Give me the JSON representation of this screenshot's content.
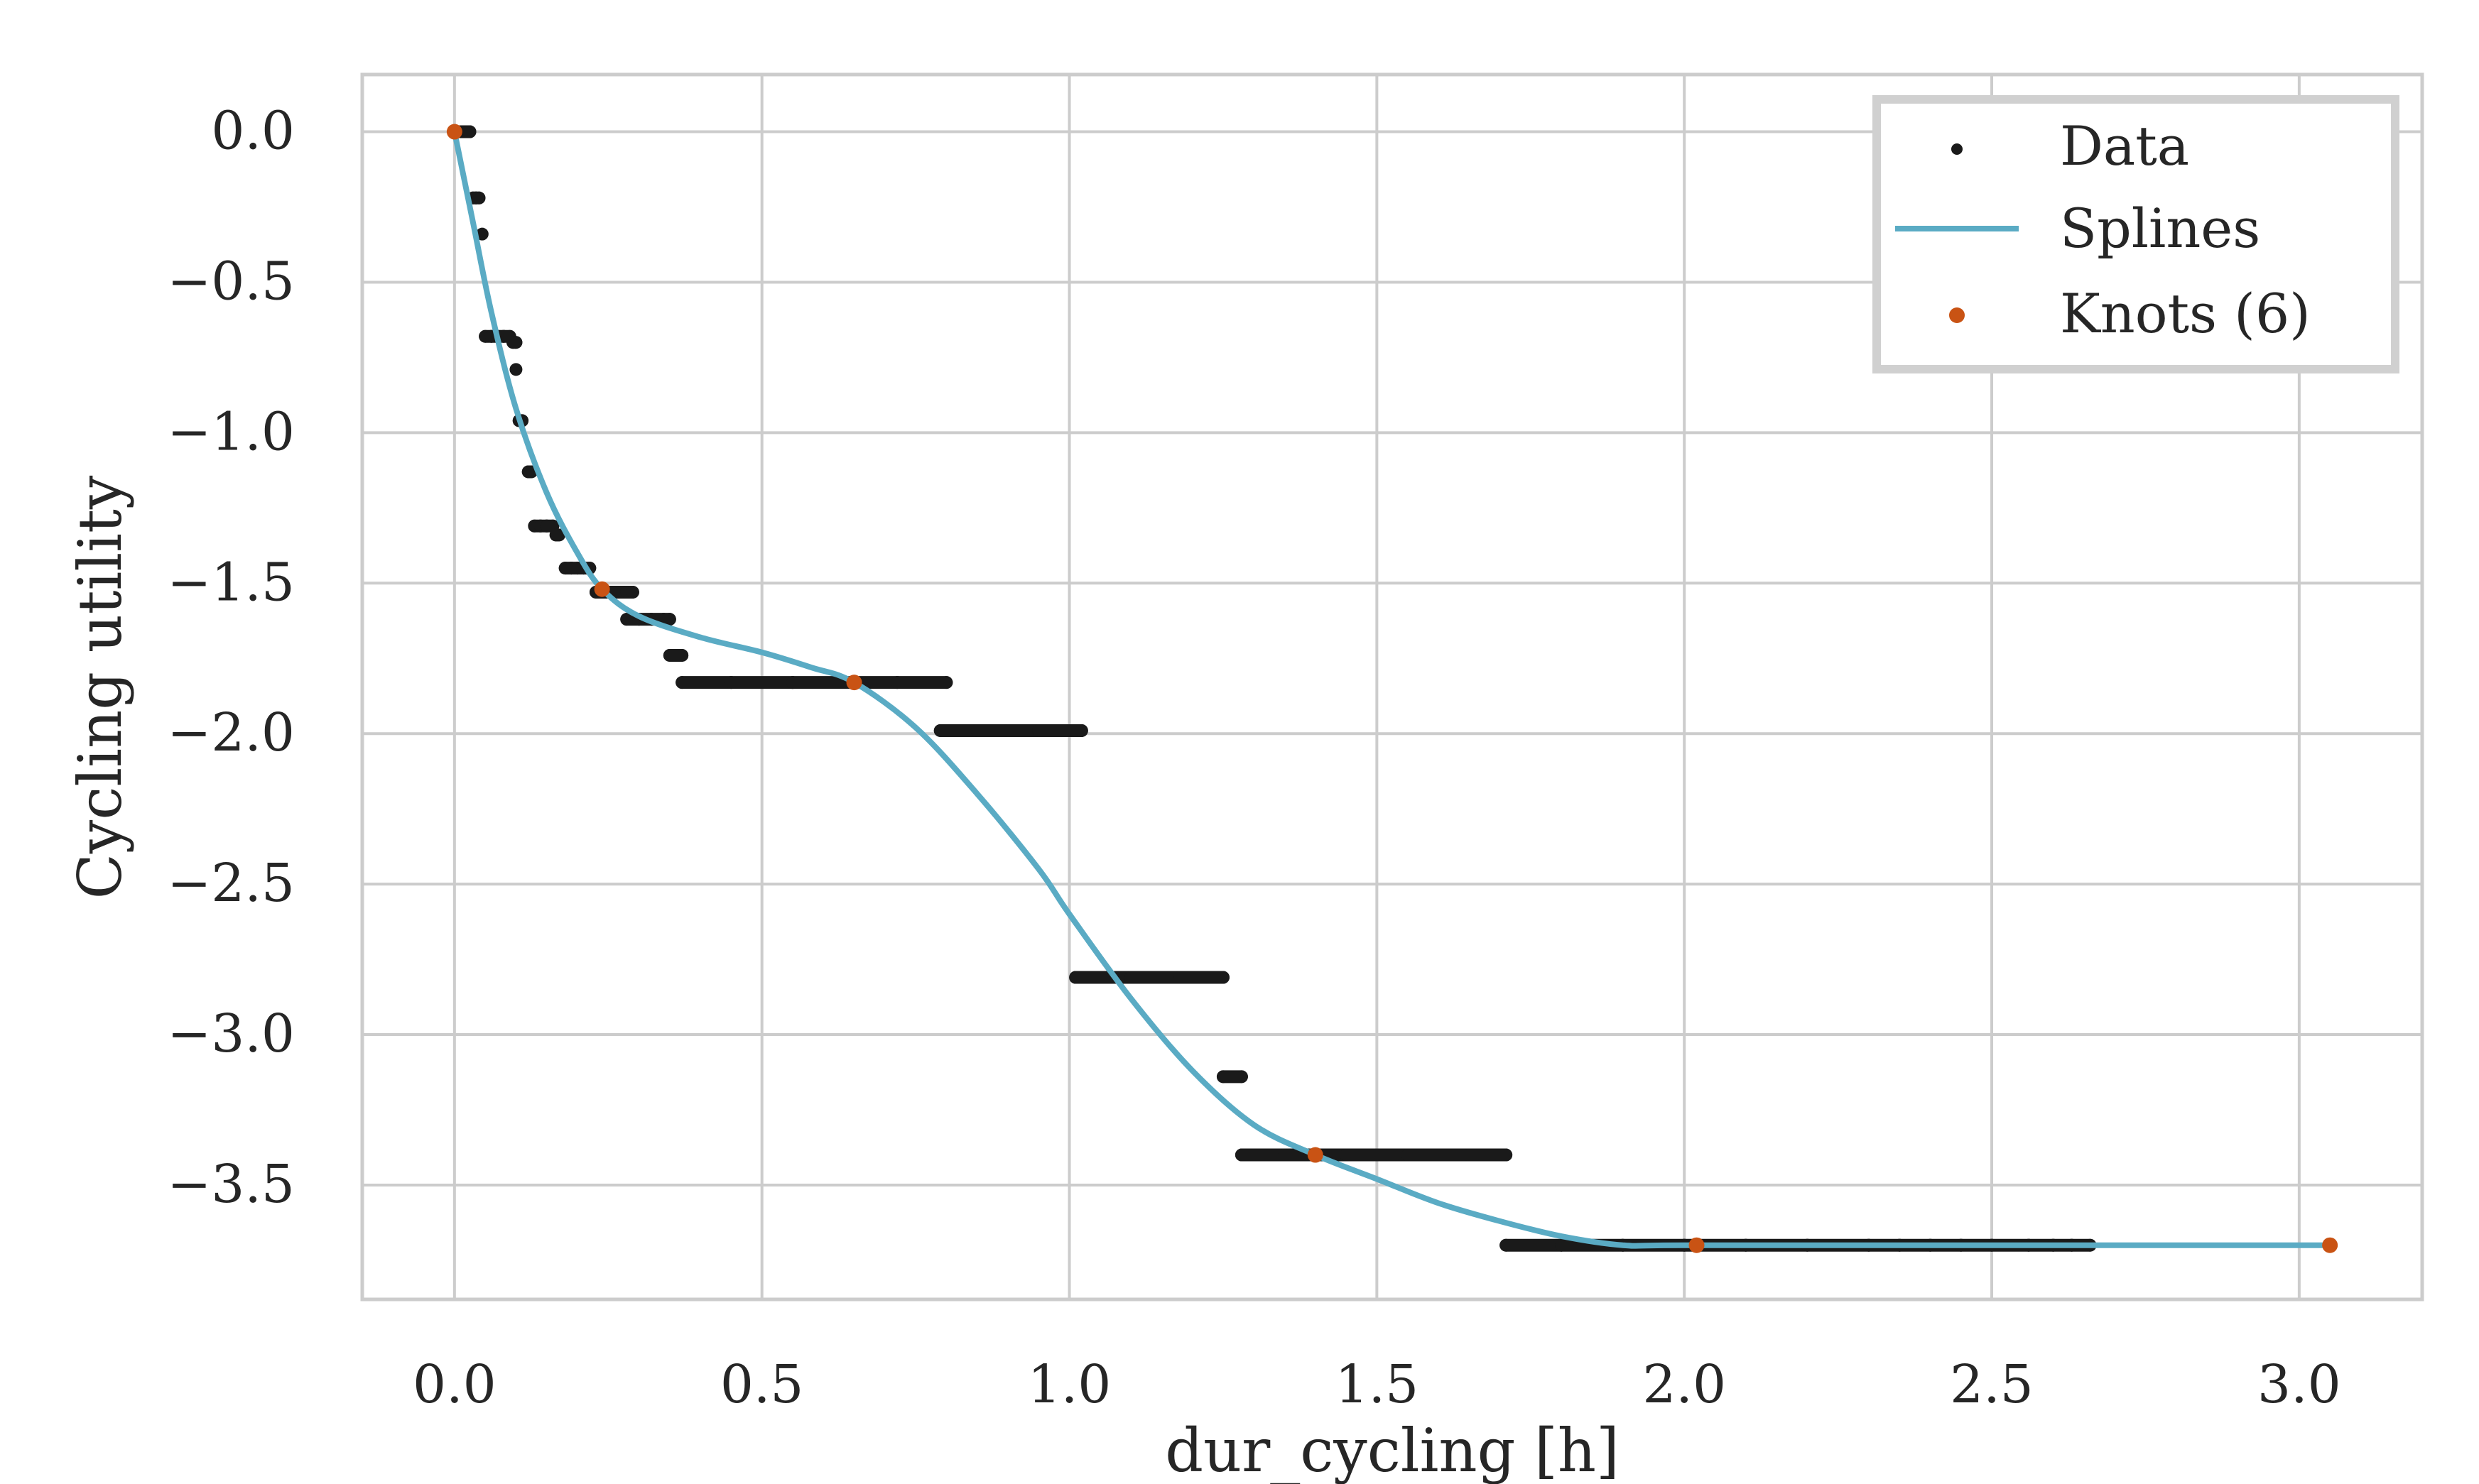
{
  "chart_data": {
    "type": "scatter",
    "xlabel": "dur_cycling [h]",
    "ylabel": "Cycling utility",
    "xlim": [
      -0.15,
      3.2
    ],
    "ylim": [
      -3.88,
      0.19
    ],
    "xticks": [
      0.0,
      0.5,
      1.0,
      1.5,
      2.0,
      2.5,
      3.0
    ],
    "yticks": [
      0.0,
      -0.5,
      -1.0,
      -1.5,
      -2.0,
      -2.5,
      -3.0,
      -3.5
    ],
    "xtick_labels": [
      "0.0",
      "0.5",
      "1.0",
      "1.5",
      "2.0",
      "2.5",
      "3.0"
    ],
    "ytick_labels": [
      "0.0",
      "−0.5",
      "−1.0",
      "−1.5",
      "−2.0",
      "−2.5",
      "−3.0",
      "−3.5"
    ],
    "grid": true,
    "legend_position": "top-right",
    "series": [
      {
        "name": "Data",
        "kind": "scatter",
        "color": "#1a1a1a",
        "points": [
          [
            0.01,
            0.0
          ],
          [
            0.02,
            0.0
          ],
          [
            0.025,
            0.0
          ],
          [
            0.03,
            -0.22
          ],
          [
            0.035,
            -0.22
          ],
          [
            0.04,
            -0.22
          ],
          [
            0.045,
            -0.34
          ],
          [
            0.05,
            -0.68
          ],
          [
            0.06,
            -0.68
          ],
          [
            0.07,
            -0.68
          ],
          [
            0.08,
            -0.68
          ],
          [
            0.09,
            -0.68
          ],
          [
            0.095,
            -0.7
          ],
          [
            0.1,
            -0.7
          ],
          [
            0.1,
            -0.79
          ],
          [
            0.105,
            -0.96
          ],
          [
            0.11,
            -0.96
          ],
          [
            0.12,
            -1.13
          ],
          [
            0.125,
            -1.13
          ],
          [
            0.13,
            -1.31
          ],
          [
            0.14,
            -1.31
          ],
          [
            0.15,
            -1.31
          ],
          [
            0.16,
            -1.31
          ],
          [
            0.165,
            -1.34
          ],
          [
            0.17,
            -1.34
          ],
          [
            0.18,
            -1.45
          ],
          [
            0.19,
            -1.45
          ],
          [
            0.2,
            -1.45
          ],
          [
            0.21,
            -1.45
          ],
          [
            0.22,
            -1.45
          ],
          [
            0.23,
            -1.53
          ],
          [
            0.24,
            -1.53
          ],
          [
            0.25,
            -1.53
          ],
          [
            0.26,
            -1.53
          ],
          [
            0.28,
            -1.53
          ],
          [
            0.29,
            -1.53
          ],
          [
            0.28,
            -1.62
          ],
          [
            0.3,
            -1.62
          ],
          [
            0.32,
            -1.62
          ],
          [
            0.34,
            -1.62
          ],
          [
            0.35,
            -1.62
          ],
          [
            0.35,
            -1.74
          ],
          [
            0.37,
            -1.74
          ],
          [
            0.37,
            -1.83
          ],
          [
            0.45,
            -1.83
          ],
          [
            0.55,
            -1.83
          ],
          [
            0.65,
            -1.83
          ],
          [
            0.72,
            -1.83
          ],
          [
            0.8,
            -1.83
          ],
          [
            0.79,
            -1.99
          ],
          [
            0.85,
            -1.99
          ],
          [
            0.9,
            -1.99
          ],
          [
            0.95,
            -1.99
          ],
          [
            1.02,
            -1.99
          ],
          [
            1.01,
            -2.81
          ],
          [
            1.1,
            -2.81
          ],
          [
            1.18,
            -2.81
          ],
          [
            1.25,
            -2.81
          ],
          [
            1.25,
            -3.14
          ],
          [
            1.28,
            -3.14
          ],
          [
            1.28,
            -3.4
          ],
          [
            1.35,
            -3.4
          ],
          [
            1.45,
            -3.4
          ],
          [
            1.55,
            -3.4
          ],
          [
            1.65,
            -3.4
          ],
          [
            1.71,
            -3.4
          ],
          [
            1.71,
            -3.7
          ],
          [
            1.8,
            -3.7
          ],
          [
            1.9,
            -3.7
          ],
          [
            2.0,
            -3.7
          ],
          [
            2.1,
            -3.7
          ],
          [
            2.2,
            -3.7
          ],
          [
            2.3,
            -3.7
          ],
          [
            2.35,
            -3.7
          ],
          [
            2.4,
            -3.7
          ],
          [
            2.45,
            -3.7
          ],
          [
            2.5,
            -3.7
          ],
          [
            2.56,
            -3.7
          ],
          [
            2.6,
            -3.7
          ],
          [
            2.63,
            -3.7
          ],
          [
            2.66,
            -3.7
          ]
        ]
      },
      {
        "name": "Splines",
        "kind": "line",
        "color": "#5aabc4",
        "points": [
          [
            0.0,
            0.0
          ],
          [
            0.03,
            -0.3
          ],
          [
            0.06,
            -0.6
          ],
          [
            0.1,
            -0.92
          ],
          [
            0.15,
            -1.2
          ],
          [
            0.2,
            -1.4
          ],
          [
            0.24,
            -1.52
          ],
          [
            0.3,
            -1.61
          ],
          [
            0.4,
            -1.68
          ],
          [
            0.5,
            -1.73
          ],
          [
            0.58,
            -1.78
          ],
          [
            0.65,
            -1.83
          ],
          [
            0.75,
            -1.98
          ],
          [
            0.85,
            -2.2
          ],
          [
            0.95,
            -2.45
          ],
          [
            1.0,
            -2.6
          ],
          [
            1.1,
            -2.88
          ],
          [
            1.2,
            -3.12
          ],
          [
            1.3,
            -3.3
          ],
          [
            1.4,
            -3.4
          ],
          [
            1.5,
            -3.48
          ],
          [
            1.6,
            -3.56
          ],
          [
            1.7,
            -3.62
          ],
          [
            1.8,
            -3.67
          ],
          [
            1.9,
            -3.7
          ],
          [
            2.0,
            -3.7
          ],
          [
            2.5,
            -3.7
          ],
          [
            3.05,
            -3.7
          ]
        ]
      },
      {
        "name": "Knots (6)",
        "kind": "scatter",
        "color": "#c95314",
        "points": [
          [
            0.0,
            0.0
          ],
          [
            0.24,
            -1.52
          ],
          [
            0.65,
            -1.83
          ],
          [
            1.4,
            -3.4
          ],
          [
            2.02,
            -3.7
          ],
          [
            3.05,
            -3.7
          ]
        ]
      }
    ]
  }
}
